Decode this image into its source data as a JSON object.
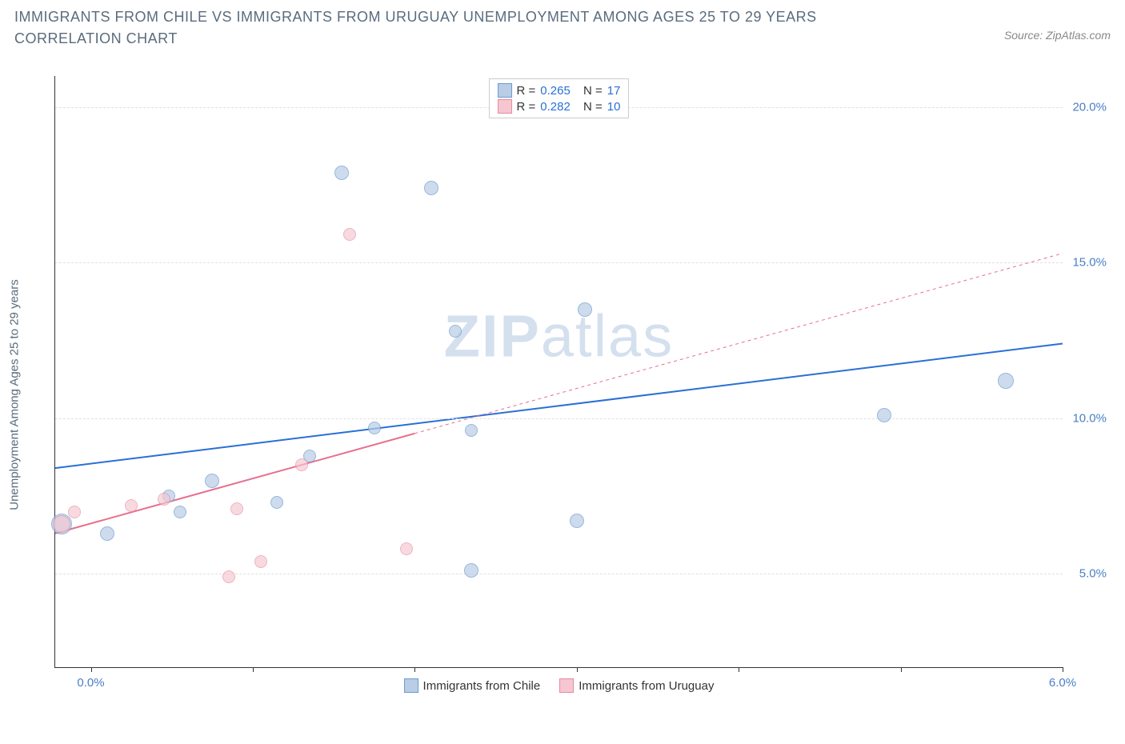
{
  "title": "IMMIGRANTS FROM CHILE VS IMMIGRANTS FROM URUGUAY UNEMPLOYMENT AMONG AGES 25 TO 29 YEARS CORRELATION CHART",
  "source": "Source: ZipAtlas.com",
  "watermark_prefix": "ZIP",
  "watermark_suffix": "atlas",
  "chart": {
    "type": "scatter",
    "background_color": "#ffffff",
    "grid_color": "#e0e0e0",
    "axis_color": "#333333",
    "ylabel": "Unemployment Among Ages 25 to 29 years",
    "xlim": [
      -0.22,
      6.0
    ],
    "ylim": [
      2.0,
      21.0
    ],
    "yticks": [
      5.0,
      10.0,
      15.0,
      20.0
    ],
    "ytick_labels": [
      "5.0%",
      "10.0%",
      "15.0%",
      "20.0%"
    ],
    "xticks": [
      0.0,
      1.0,
      2.0,
      3.0,
      4.0,
      5.0,
      6.0
    ],
    "xtick_labels_visible": {
      "0": "0.0%",
      "6": "6.0%"
    },
    "label_fontsize": 15,
    "tick_color": "#4a7ec7"
  },
  "legend_stats": [
    {
      "color_fill": "#b9cde4",
      "color_stroke": "#6b9bd1",
      "r_label": "R =",
      "r_value": "0.265",
      "n_label": "N =",
      "n_value": "17"
    },
    {
      "color_fill": "#f6c6d1",
      "color_stroke": "#e48ba3",
      "r_label": "R =",
      "r_value": "0.282",
      "n_label": "N =",
      "n_value": "10"
    }
  ],
  "bottom_legend": [
    {
      "label": "Immigrants from Chile",
      "fill": "#b9cde4",
      "stroke": "#6b9bd1"
    },
    {
      "label": "Immigrants from Uruguay",
      "fill": "#f6c6d1",
      "stroke": "#e48ba3"
    }
  ],
  "series": [
    {
      "name": "Immigrants from Chile",
      "marker_fill": "#b9cde4",
      "marker_stroke": "#6b9bd1",
      "marker_opacity": 0.7,
      "trend_color": "#2a6fd6",
      "trend_dash": "none",
      "trend_width": 2,
      "trend_x0": -0.22,
      "trend_y0": 8.4,
      "trend_x1": 6.0,
      "trend_y1": 12.4,
      "points": [
        {
          "x": -0.18,
          "y": 6.6,
          "r": 13
        },
        {
          "x": 0.1,
          "y": 6.3,
          "r": 9
        },
        {
          "x": 0.48,
          "y": 7.5,
          "r": 8
        },
        {
          "x": 0.55,
          "y": 7.0,
          "r": 8
        },
        {
          "x": 0.75,
          "y": 8.0,
          "r": 9
        },
        {
          "x": 1.15,
          "y": 7.3,
          "r": 8
        },
        {
          "x": 1.35,
          "y": 8.8,
          "r": 8
        },
        {
          "x": 1.55,
          "y": 17.9,
          "r": 9
        },
        {
          "x": 1.75,
          "y": 9.7,
          "r": 8
        },
        {
          "x": 2.1,
          "y": 17.4,
          "r": 9
        },
        {
          "x": 2.25,
          "y": 12.8,
          "r": 8
        },
        {
          "x": 2.35,
          "y": 9.6,
          "r": 8
        },
        {
          "x": 2.35,
          "y": 5.1,
          "r": 9
        },
        {
          "x": 3.0,
          "y": 6.7,
          "r": 9
        },
        {
          "x": 3.05,
          "y": 13.5,
          "r": 9
        },
        {
          "x": 4.9,
          "y": 10.1,
          "r": 9
        },
        {
          "x": 5.65,
          "y": 11.2,
          "r": 10
        }
      ]
    },
    {
      "name": "Immigrants from Uruguay",
      "marker_fill": "#f6c6d1",
      "marker_stroke": "#e48ba3",
      "marker_opacity": 0.65,
      "trend_color": "#e76f8f",
      "trend_dash_solid_until_x": 2.0,
      "trend_width": 2,
      "trend_x0": -0.22,
      "trend_y0": 6.3,
      "trend_x1": 6.0,
      "trend_y1": 15.3,
      "points": [
        {
          "x": -0.18,
          "y": 6.6,
          "r": 11
        },
        {
          "x": -0.1,
          "y": 7.0,
          "r": 8
        },
        {
          "x": 0.25,
          "y": 7.2,
          "r": 8
        },
        {
          "x": 0.45,
          "y": 7.4,
          "r": 8
        },
        {
          "x": 0.85,
          "y": 4.9,
          "r": 8
        },
        {
          "x": 0.9,
          "y": 7.1,
          "r": 8
        },
        {
          "x": 1.05,
          "y": 5.4,
          "r": 8
        },
        {
          "x": 1.3,
          "y": 8.5,
          "r": 8
        },
        {
          "x": 1.6,
          "y": 15.9,
          "r": 8
        },
        {
          "x": 1.95,
          "y": 5.8,
          "r": 8
        }
      ]
    }
  ]
}
